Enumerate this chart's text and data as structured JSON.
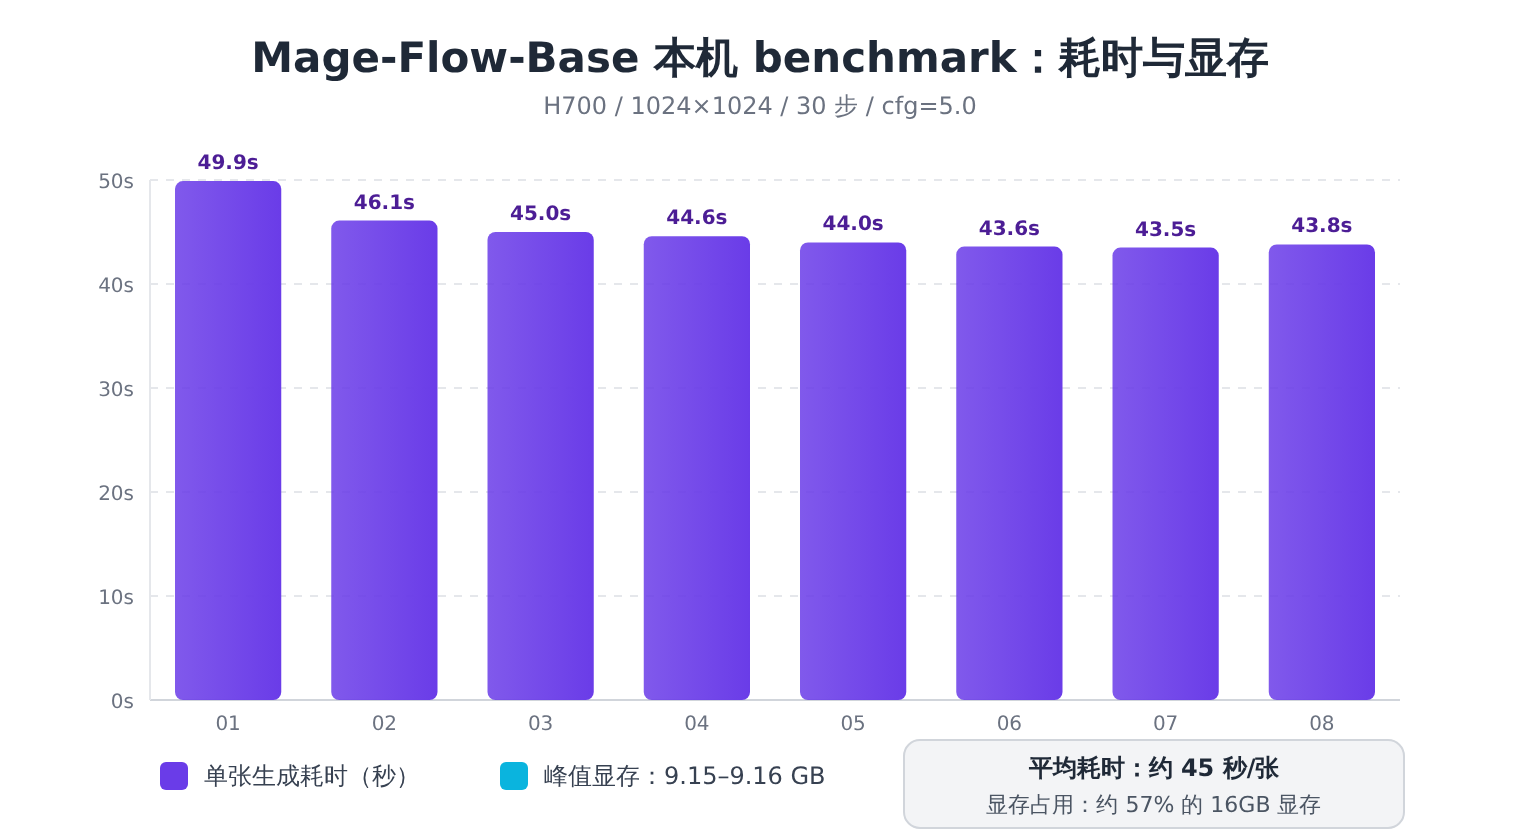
{
  "chart_data": {
    "type": "bar",
    "title": "Mage-Flow-Base 本机 benchmark：耗时与显存",
    "subtitle": "H700 / 1024×1024 / 30 步 / cfg=5.0",
    "categories": [
      "01",
      "02",
      "03",
      "04",
      "05",
      "06",
      "07",
      "08"
    ],
    "series": [
      {
        "name": "单张生成耗时（秒）",
        "color": "#6a3ce8",
        "values": [
          49.9,
          46.1,
          45.0,
          44.6,
          44.0,
          43.6,
          43.5,
          43.8
        ],
        "value_labels": [
          "49.9s",
          "46.1s",
          "45.0s",
          "44.6s",
          "44.0s",
          "43.6s",
          "43.5s",
          "43.8s"
        ]
      },
      {
        "name": "峰值显存：9.15–9.16 GB",
        "color": "#0ab4de",
        "values": [
          null,
          null,
          null,
          null,
          null,
          null,
          null,
          null
        ]
      }
    ],
    "ylim": [
      0,
      50
    ],
    "yticks": [
      {
        "value": 0,
        "label": "0s"
      },
      {
        "value": 10,
        "label": "10s"
      },
      {
        "value": 20,
        "label": "20s"
      },
      {
        "value": 30,
        "label": "30s"
      },
      {
        "value": 40,
        "label": "40s"
      },
      {
        "value": 50,
        "label": "50s"
      }
    ],
    "grid": "y",
    "legend": "bottom",
    "annotations": [
      "平均耗时：约 45 秒/张",
      "显存占用：约 57% 的 16GB 显存"
    ]
  }
}
